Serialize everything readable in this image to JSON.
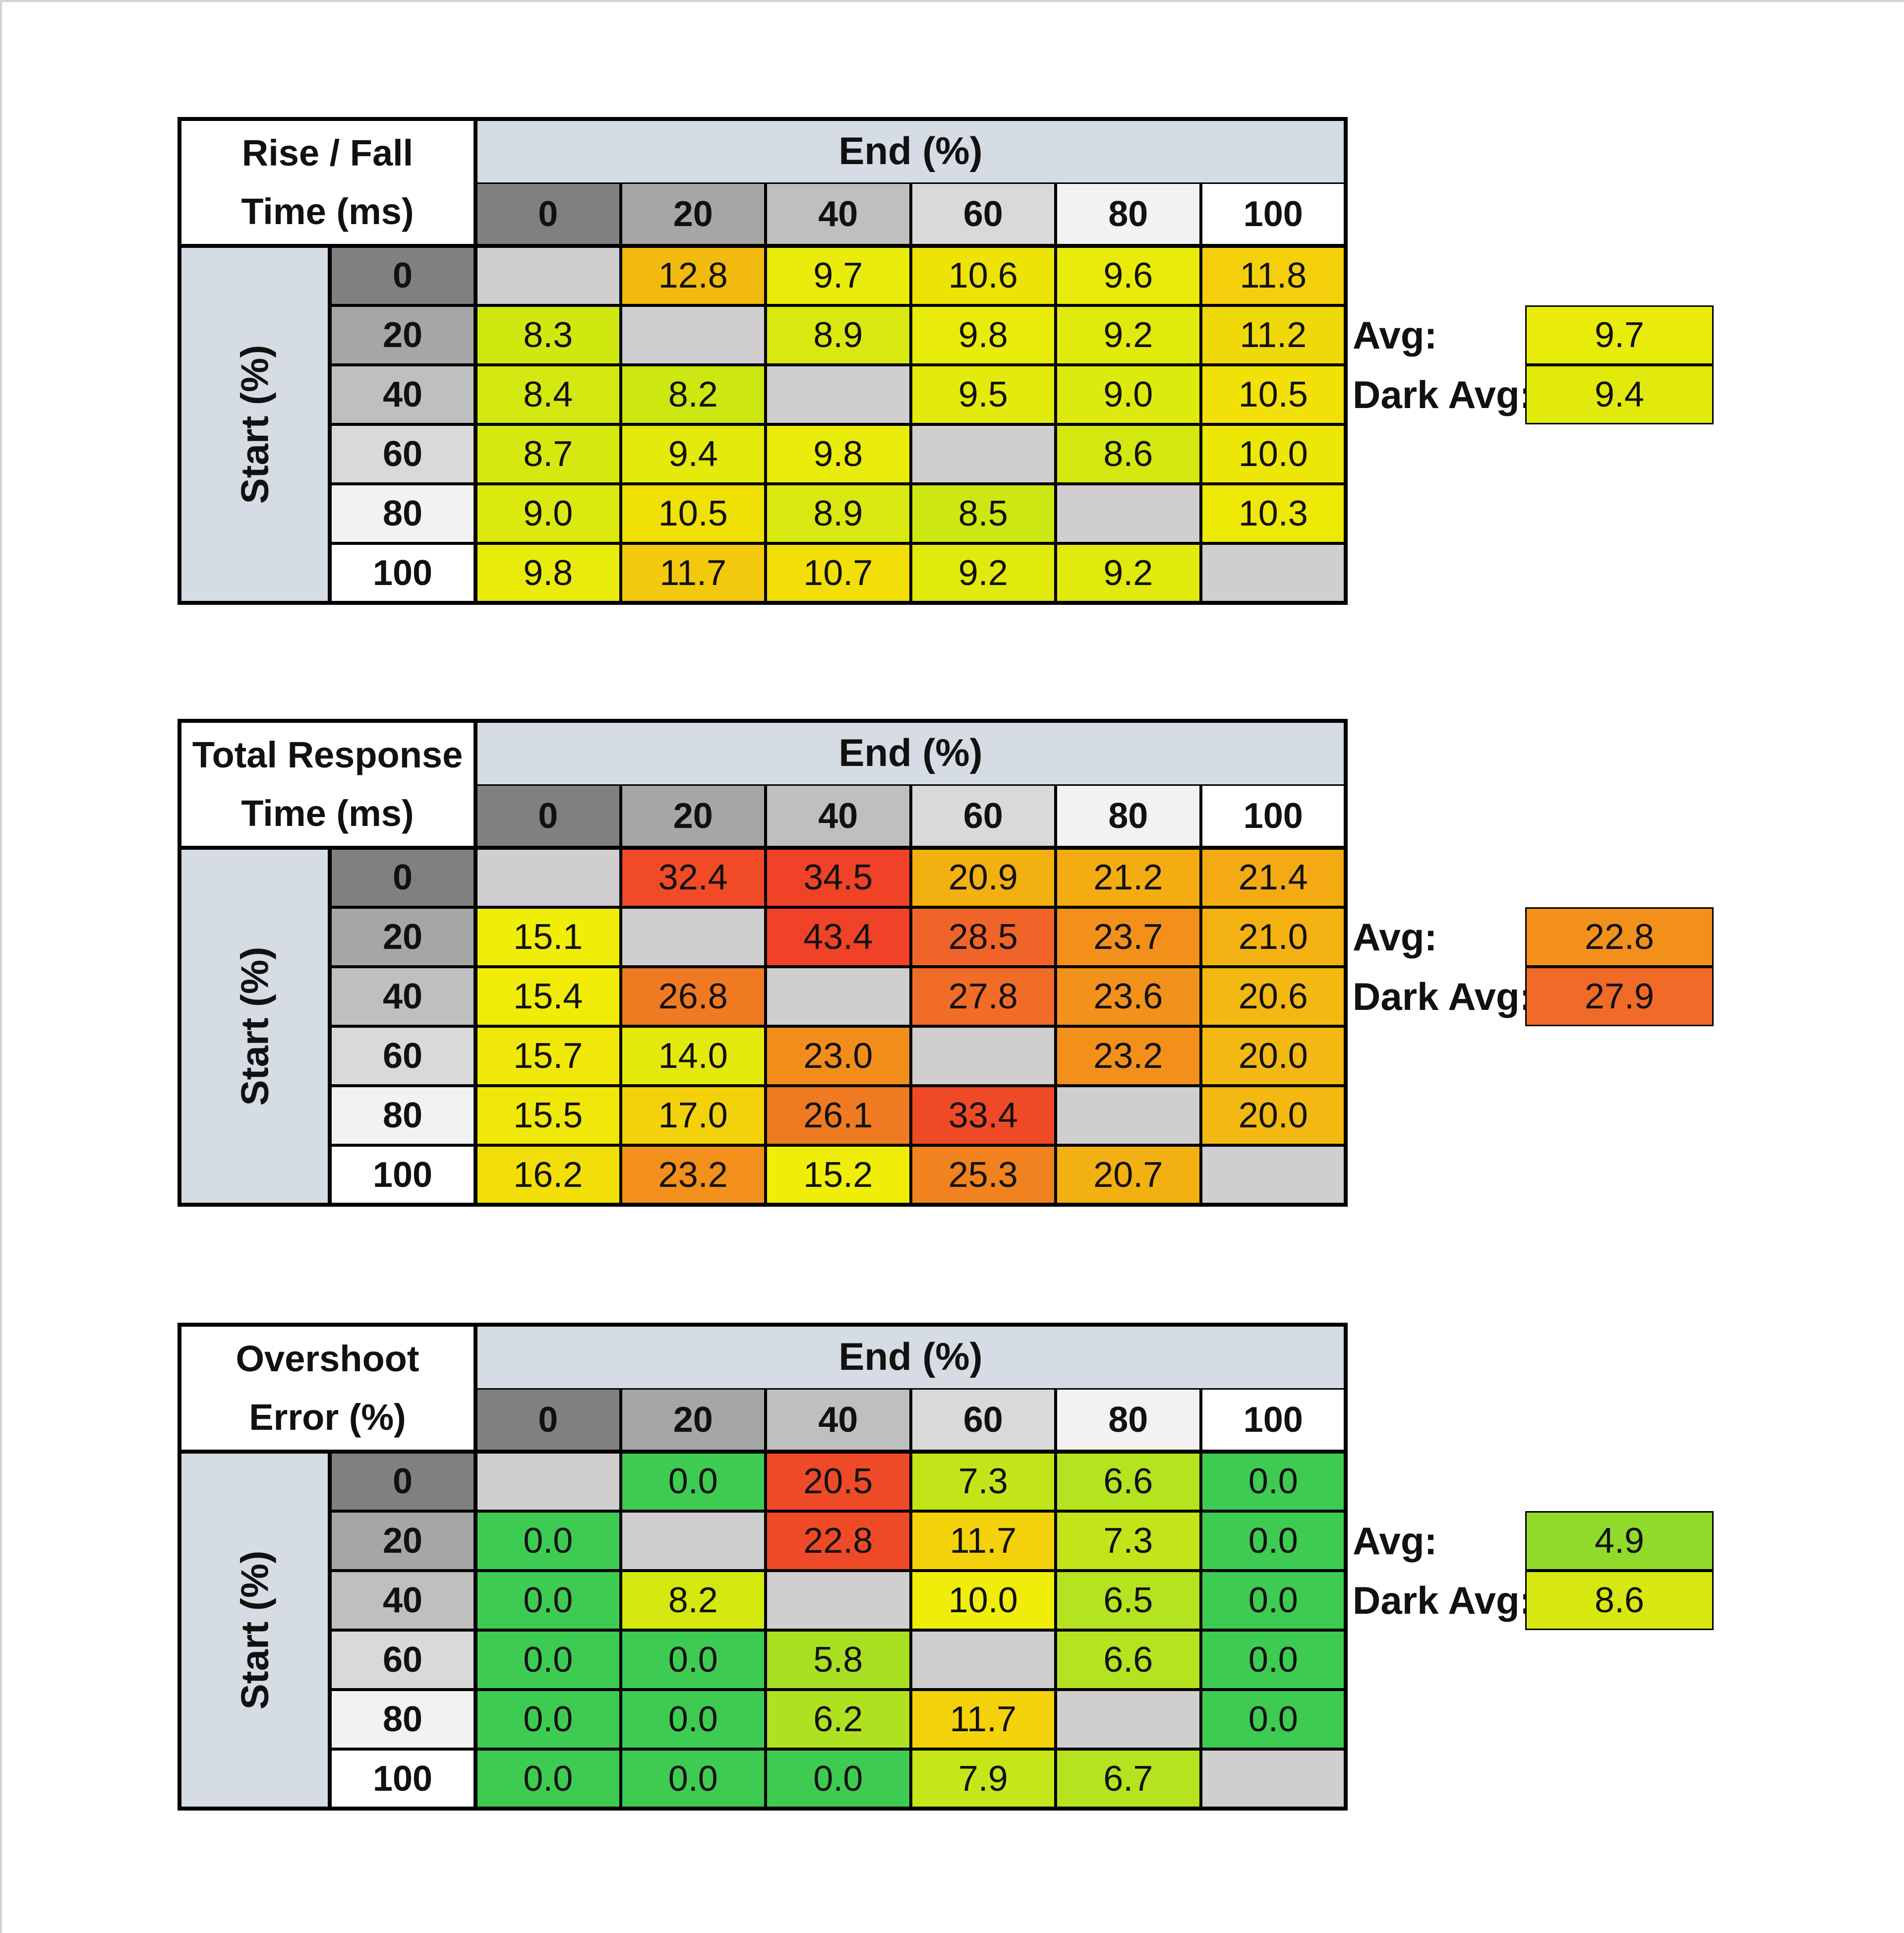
{
  "tables": [
    {
      "id": "rise-fall",
      "title_lines": [
        "Rise / Fall",
        "Time (ms)"
      ],
      "end_label": "End (%)",
      "start_label": "Start (%)",
      "col_headers": [
        "0",
        "20",
        "40",
        "60",
        "80",
        "100"
      ],
      "row_headers": [
        "0",
        "20",
        "40",
        "60",
        "80",
        "100"
      ],
      "cells": [
        [
          "",
          "12.8",
          "9.7",
          "10.6",
          "9.6",
          "11.8"
        ],
        [
          "8.3",
          "",
          "8.9",
          "9.8",
          "9.2",
          "11.2"
        ],
        [
          "8.4",
          "8.2",
          "",
          "9.5",
          "9.0",
          "10.5"
        ],
        [
          "8.7",
          "9.4",
          "9.8",
          "",
          "8.6",
          "10.0"
        ],
        [
          "9.0",
          "10.5",
          "8.9",
          "8.5",
          "",
          "10.3"
        ],
        [
          "9.8",
          "11.7",
          "10.7",
          "9.2",
          "9.2",
          ""
        ]
      ],
      "colors": [
        [
          "#d0cece",
          "#f2b90f",
          "#e9ec0b",
          "#ede306",
          "#e9ec0b",
          "#f3cf0c"
        ],
        [
          "#d0e810",
          "#d0cece",
          "#d9e810",
          "#e9ec0b",
          "#e0ea0c",
          "#f0d90a"
        ],
        [
          "#d2e810",
          "#cce712",
          "#d0cece",
          "#e4eb0c",
          "#dcea0e",
          "#f1e108"
        ],
        [
          "#d5e810",
          "#e3ea0c",
          "#e9ec0b",
          "#d0cece",
          "#d2e810",
          "#ede707"
        ],
        [
          "#dbe90e",
          "#efe006",
          "#d9e810",
          "#cde712",
          "#d0cece",
          "#eee807"
        ],
        [
          "#e9ec0b",
          "#f3c90d",
          "#f1df07",
          "#e0ea0c",
          "#e0ea0c",
          "#d0cece"
        ]
      ],
      "avg_label": "Avg:",
      "avg_value": "9.7",
      "avg_color": "#e9ec0b",
      "dark_avg_label": "Dark Avg:",
      "dark_avg_value": "9.4",
      "dark_avg_color": "#e2ea0c"
    },
    {
      "id": "total-response",
      "title_lines": [
        "Total Response",
        "Time (ms)"
      ],
      "end_label": "End (%)",
      "start_label": "Start (%)",
      "col_headers": [
        "0",
        "20",
        "40",
        "60",
        "80",
        "100"
      ],
      "row_headers": [
        "0",
        "20",
        "40",
        "60",
        "80",
        "100"
      ],
      "cells": [
        [
          "",
          "32.4",
          "34.5",
          "20.9",
          "21.2",
          "21.4"
        ],
        [
          "15.1",
          "",
          "43.4",
          "28.5",
          "23.7",
          "21.0"
        ],
        [
          "15.4",
          "26.8",
          "",
          "27.8",
          "23.6",
          "20.6"
        ],
        [
          "15.7",
          "14.0",
          "23.0",
          "",
          "23.2",
          "20.0"
        ],
        [
          "15.5",
          "17.0",
          "26.1",
          "33.4",
          "",
          "20.0"
        ],
        [
          "16.2",
          "23.2",
          "15.2",
          "25.3",
          "20.7",
          ""
        ]
      ],
      "colors": [
        [
          "#d0cece",
          "#f04a26",
          "#ef4226",
          "#f3b011",
          "#f3ad12",
          "#f3aa13"
        ],
        [
          "#f0ee08",
          "#d0cece",
          "#ef4227",
          "#f0642a",
          "#f2901a",
          "#f3b211"
        ],
        [
          "#f0ec08",
          "#f07a22",
          "#d0cece",
          "#f06c27",
          "#f2921b",
          "#f3b811"
        ],
        [
          "#f0e808",
          "#e4eb0c",
          "#f28d1c",
          "#d0cece",
          "#f2901b",
          "#f3b812"
        ],
        [
          "#f0e808",
          "#f3d20b",
          "#f07a22",
          "#ef4a27",
          "#d0cece",
          "#f3b812"
        ],
        [
          "#f2de08",
          "#f2901b",
          "#f0ee08",
          "#f0821f",
          "#f3b012",
          "#d0cece"
        ]
      ],
      "avg_label": "Avg:",
      "avg_value": "22.8",
      "avg_color": "#f2901b",
      "dark_avg_label": "Dark Avg:",
      "dark_avg_value": "27.9",
      "dark_avg_color": "#f06a28"
    },
    {
      "id": "overshoot",
      "title_lines": [
        "Overshoot",
        "Error (%)"
      ],
      "end_label": "End (%)",
      "start_label": "Start (%)",
      "col_headers": [
        "0",
        "20",
        "40",
        "60",
        "80",
        "100"
      ],
      "row_headers": [
        "0",
        "20",
        "40",
        "60",
        "80",
        "100"
      ],
      "cells": [
        [
          "",
          "0.0",
          "20.5",
          "7.3",
          "6.6",
          "0.0"
        ],
        [
          "0.0",
          "",
          "22.8",
          "11.7",
          "7.3",
          "0.0"
        ],
        [
          "0.0",
          "8.2",
          "",
          "10.0",
          "6.5",
          "0.0"
        ],
        [
          "0.0",
          "0.0",
          "5.8",
          "",
          "6.6",
          "0.0"
        ],
        [
          "0.0",
          "0.0",
          "6.2",
          "11.7",
          "",
          "0.0"
        ],
        [
          "0.0",
          "0.0",
          "0.0",
          "7.9",
          "6.7",
          ""
        ]
      ],
      "colors": [
        [
          "#d0cece",
          "#3ecb52",
          "#ef4a27",
          "#c2e51a",
          "#b4e320",
          "#3ecb52"
        ],
        [
          "#3ecb52",
          "#d0cece",
          "#ef4a27",
          "#f3d20b",
          "#c2e51a",
          "#3ecb52"
        ],
        [
          "#3ecb52",
          "#d4e810",
          "#d0cece",
          "#f0ee08",
          "#b4e320",
          "#3ecb52"
        ],
        [
          "#3ecb52",
          "#3ecb52",
          "#a8e021",
          "#d0cece",
          "#b4e320",
          "#3ecb52"
        ],
        [
          "#3ecb52",
          "#3ecb52",
          "#aee221",
          "#f3d20b",
          "#d0cece",
          "#3ecb52"
        ],
        [
          "#3ecb52",
          "#3ecb52",
          "#3ecb52",
          "#c6e61a",
          "#b6e31f",
          "#d0cece"
        ]
      ],
      "avg_label": "Avg:",
      "avg_value": "4.9",
      "avg_color": "#90da2a",
      "dark_avg_label": "Dark Avg:",
      "dark_avg_value": "8.6",
      "dark_avg_color": "#d6e810"
    }
  ],
  "header_shades": [
    "#808080",
    "#a6a6a6",
    "#bfbfbf",
    "#d9d9d9",
    "#f2f2f2",
    "#ffffff"
  ],
  "chart_data": [
    {
      "type": "heatmap",
      "title": "Rise / Fall Time (ms)",
      "xlabel": "End (%)",
      "ylabel": "Start (%)",
      "x": [
        0,
        20,
        40,
        60,
        80,
        100
      ],
      "y": [
        0,
        20,
        40,
        60,
        80,
        100
      ],
      "values": [
        [
          null,
          12.8,
          9.7,
          10.6,
          9.6,
          11.8
        ],
        [
          8.3,
          null,
          8.9,
          9.8,
          9.2,
          11.2
        ],
        [
          8.4,
          8.2,
          null,
          9.5,
          9.0,
          10.5
        ],
        [
          8.7,
          9.4,
          9.8,
          null,
          8.6,
          10.0
        ],
        [
          9.0,
          10.5,
          8.9,
          8.5,
          null,
          10.3
        ],
        [
          9.8,
          11.7,
          10.7,
          9.2,
          9.2,
          null
        ]
      ],
      "avg": 9.7,
      "dark_avg": 9.4
    },
    {
      "type": "heatmap",
      "title": "Total Response Time (ms)",
      "xlabel": "End (%)",
      "ylabel": "Start (%)",
      "x": [
        0,
        20,
        40,
        60,
        80,
        100
      ],
      "y": [
        0,
        20,
        40,
        60,
        80,
        100
      ],
      "values": [
        [
          null,
          32.4,
          34.5,
          20.9,
          21.2,
          21.4
        ],
        [
          15.1,
          null,
          43.4,
          28.5,
          23.7,
          21.0
        ],
        [
          15.4,
          26.8,
          null,
          27.8,
          23.6,
          20.6
        ],
        [
          15.7,
          14.0,
          23.0,
          null,
          23.2,
          20.0
        ],
        [
          15.5,
          17.0,
          26.1,
          33.4,
          null,
          20.0
        ],
        [
          16.2,
          23.2,
          15.2,
          25.3,
          20.7,
          null
        ]
      ],
      "avg": 22.8,
      "dark_avg": 27.9
    },
    {
      "type": "heatmap",
      "title": "Overshoot Error (%)",
      "xlabel": "End (%)",
      "ylabel": "Start (%)",
      "x": [
        0,
        20,
        40,
        60,
        80,
        100
      ],
      "y": [
        0,
        20,
        40,
        60,
        80,
        100
      ],
      "values": [
        [
          null,
          0.0,
          20.5,
          7.3,
          6.6,
          0.0
        ],
        [
          0.0,
          null,
          22.8,
          11.7,
          7.3,
          0.0
        ],
        [
          0.0,
          8.2,
          null,
          10.0,
          6.5,
          0.0
        ],
        [
          0.0,
          0.0,
          5.8,
          null,
          6.6,
          0.0
        ],
        [
          0.0,
          0.0,
          6.2,
          11.7,
          null,
          0.0
        ],
        [
          0.0,
          0.0,
          0.0,
          7.9,
          6.7,
          null
        ]
      ],
      "avg": 4.9,
      "dark_avg": 8.6
    }
  ]
}
